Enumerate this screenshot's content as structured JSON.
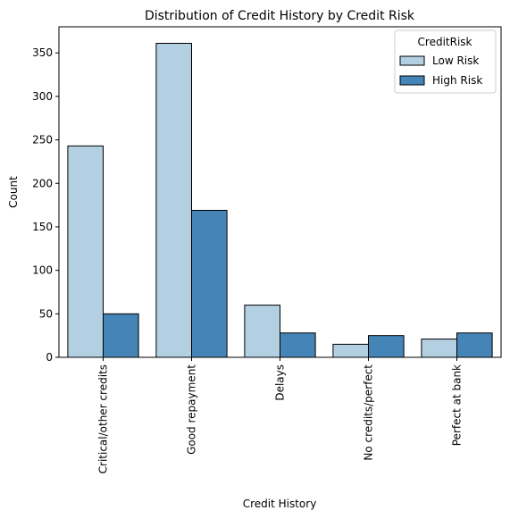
{
  "chart_data": {
    "type": "bar",
    "title": "Distribution of Credit History by Credit Risk",
    "xlabel": "Credit History",
    "ylabel": "Count",
    "categories": [
      "Critical/other credits",
      "Good repayment",
      "Delays",
      "No credits/perfect",
      "Perfect at bank"
    ],
    "series": [
      {
        "name": "Low Risk",
        "values": [
          243,
          361,
          60,
          15,
          21
        ],
        "color": "#b3cfe2"
      },
      {
        "name": "High Risk",
        "values": [
          50,
          169,
          28,
          25,
          28
        ],
        "color": "#4584b6"
      }
    ],
    "ylim": [
      0,
      380
    ],
    "yticks": [
      0,
      50,
      100,
      150,
      200,
      250,
      300,
      350
    ],
    "legend": {
      "title": "CreditRisk",
      "position": "top-right"
    },
    "grid": false
  }
}
